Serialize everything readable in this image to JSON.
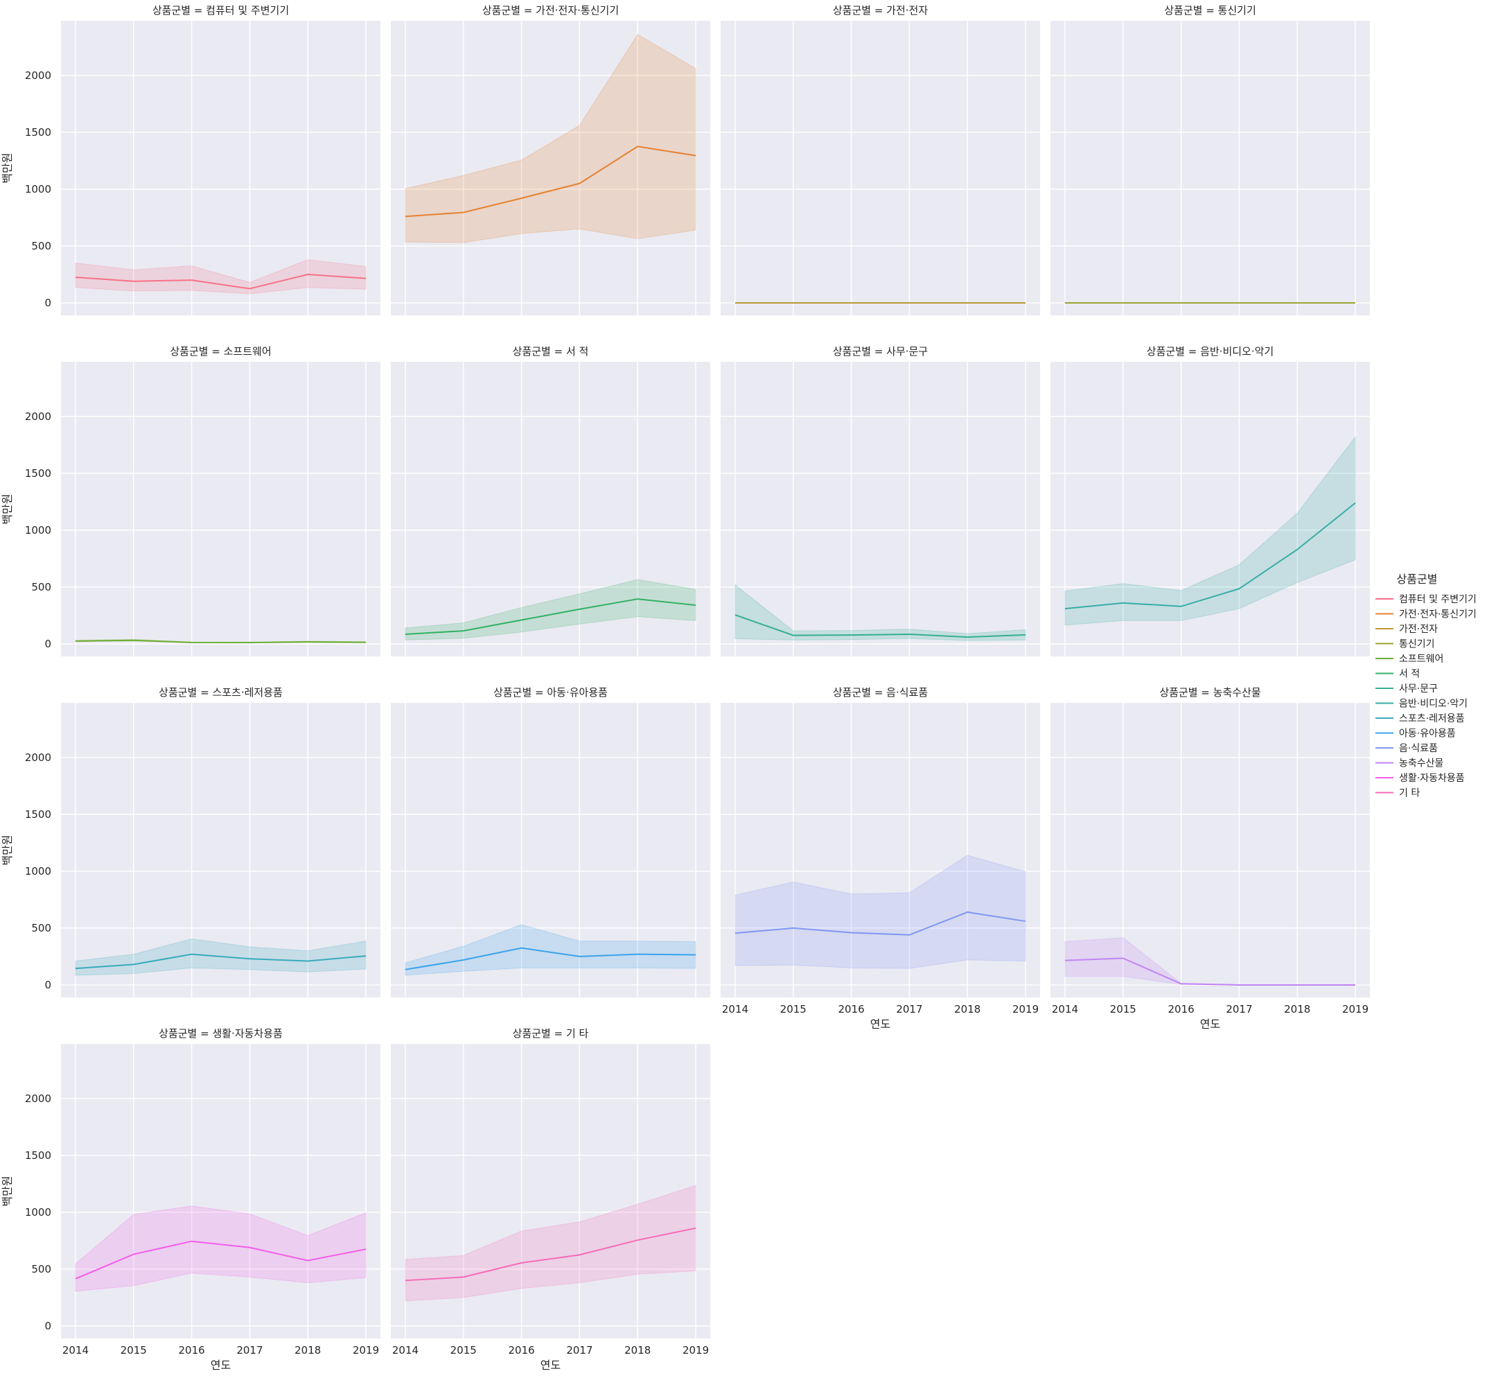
{
  "chart_data": {
    "type": "line",
    "layout": "facet-grid",
    "facet_title_prefix": "상품군별 = ",
    "xlabel": "연도",
    "ylabel": "백만원",
    "x": [
      2014,
      2015,
      2016,
      2017,
      2018,
      2019
    ],
    "xlim": [
      2013.75,
      2019.25
    ],
    "ylim": [
      -110,
      2480
    ],
    "yticks": [
      0,
      500,
      1000,
      1500,
      2000
    ],
    "grid": true,
    "legend_title": "상품군별",
    "legend_position": "right",
    "series": [
      {
        "name": "컴퓨터 및 주변기기",
        "color": "#f77189",
        "values": [
          225,
          190,
          200,
          125,
          250,
          215
        ],
        "lower": [
          135,
          105,
          110,
          80,
          135,
          120
        ],
        "upper": [
          350,
          290,
          325,
          180,
          380,
          320
        ]
      },
      {
        "name": "가전·전자·통신기기",
        "color": "#e7812f",
        "values": [
          760,
          795,
          920,
          1050,
          1375,
          1295
        ],
        "lower": [
          535,
          530,
          610,
          650,
          565,
          640
        ],
        "upper": [
          1005,
          1120,
          1255,
          1560,
          2360,
          2060
        ]
      },
      {
        "name": "가전·전자",
        "color": "#ba9a31",
        "values": [
          0,
          0,
          0,
          0,
          0,
          0
        ],
        "lower": [
          0,
          0,
          0,
          0,
          0,
          0
        ],
        "upper": [
          0,
          0,
          0,
          0,
          0,
          0
        ]
      },
      {
        "name": "통신기기",
        "color": "#9aa631",
        "values": [
          0,
          0,
          0,
          0,
          0,
          0
        ],
        "lower": [
          0,
          0,
          0,
          0,
          0,
          0
        ],
        "upper": [
          0,
          0,
          0,
          0,
          0,
          0
        ]
      },
      {
        "name": "소프트웨어",
        "color": "#6dad31",
        "values": [
          25,
          32,
          13,
          12,
          18,
          14
        ],
        "lower": [
          20,
          25,
          10,
          9,
          13,
          10
        ],
        "upper": [
          32,
          40,
          16,
          15,
          24,
          19
        ]
      },
      {
        "name": "서 적",
        "color": "#32b164",
        "values": [
          85,
          115,
          210,
          305,
          395,
          340
        ],
        "lower": [
          35,
          50,
          105,
          175,
          240,
          205
        ],
        "upper": [
          140,
          185,
          320,
          440,
          565,
          480
        ]
      },
      {
        "name": "사무·문구",
        "color": "#34ae91",
        "values": [
          255,
          75,
          78,
          85,
          60,
          80
        ],
        "lower": [
          45,
          35,
          38,
          48,
          30,
          35
        ],
        "upper": [
          520,
          115,
          118,
          130,
          90,
          125
        ]
      },
      {
        "name": "음반·비디오·악기",
        "color": "#36ada5",
        "values": [
          310,
          360,
          330,
          485,
          830,
          1240
        ],
        "lower": [
          165,
          205,
          205,
          310,
          540,
          740
        ],
        "upper": [
          465,
          530,
          470,
          695,
          1150,
          1820
        ]
      },
      {
        "name": "스포츠·레저용품",
        "color": "#38aabc",
        "values": [
          145,
          180,
          270,
          230,
          210,
          255
        ],
        "lower": [
          85,
          100,
          150,
          135,
          115,
          140
        ],
        "upper": [
          210,
          270,
          405,
          335,
          300,
          385
        ]
      },
      {
        "name": "아동·유아용품",
        "color": "#3ba3ec",
        "values": [
          135,
          220,
          325,
          250,
          270,
          265
        ],
        "lower": [
          85,
          120,
          150,
          150,
          150,
          145
        ],
        "upper": [
          195,
          340,
          530,
          385,
          385,
          380
        ]
      },
      {
        "name": "음·식료품",
        "color": "#8197f4",
        "values": [
          455,
          500,
          460,
          440,
          640,
          560
        ],
        "lower": [
          170,
          175,
          150,
          145,
          220,
          210
        ],
        "upper": [
          790,
          905,
          800,
          810,
          1140,
          995
        ]
      },
      {
        "name": "농축수산물",
        "color": "#c184f4",
        "values": [
          215,
          235,
          10,
          0,
          0,
          0
        ],
        "lower": [
          75,
          75,
          5,
          0,
          0,
          0
        ],
        "upper": [
          380,
          415,
          15,
          0,
          0,
          0
        ]
      },
      {
        "name": "생활·자동차용품",
        "color": "#f45deb",
        "values": [
          415,
          630,
          745,
          690,
          575,
          675
        ],
        "lower": [
          305,
          355,
          465,
          430,
          380,
          425
        ],
        "upper": [
          545,
          980,
          1055,
          985,
          795,
          995
        ]
      },
      {
        "name": "기 타",
        "color": "#f66bb7",
        "values": [
          400,
          430,
          555,
          625,
          755,
          860
        ],
        "lower": [
          220,
          250,
          330,
          380,
          455,
          485
        ],
        "upper": [
          585,
          620,
          835,
          915,
          1070,
          1235
        ]
      }
    ]
  }
}
